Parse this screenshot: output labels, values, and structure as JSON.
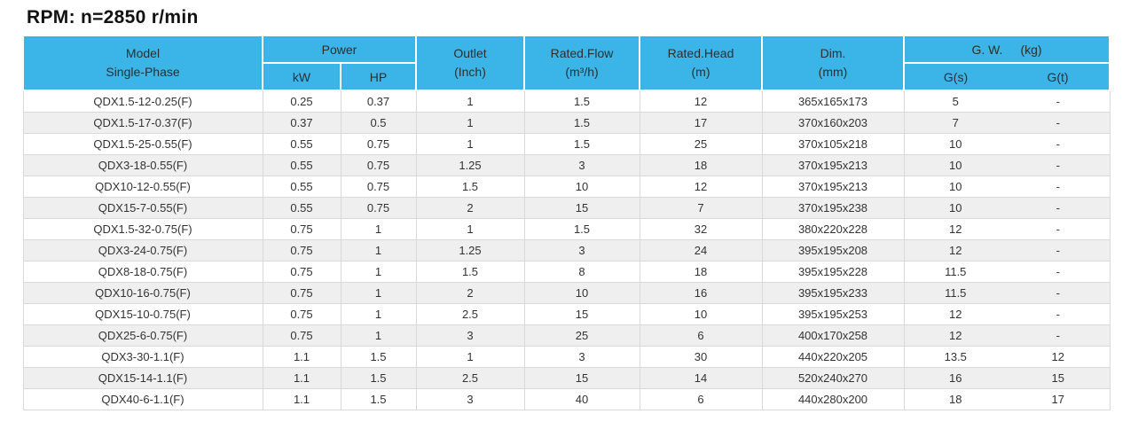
{
  "title": "RPM: n=2850 r/min",
  "colors": {
    "header_bg": "#3BB5E8",
    "row_alt_bg": "#EFEFEF",
    "grid_border": "#D9D9D9",
    "body_text": "#333333",
    "header_text": "#2E2E2E"
  },
  "table": {
    "header": {
      "model_line1": "Model",
      "model_line2": "Single-Phase",
      "power": "Power",
      "power_kw": "kW",
      "power_hp": "HP",
      "outlet_line1": "Outlet",
      "outlet_line2": "(Inch)",
      "flow_line1": "Rated.Flow",
      "flow_line2": "(m³/h)",
      "head_line1": "Rated.Head",
      "head_line2": "(m)",
      "dim_line1": "Dim.",
      "dim_line2": "(mm)",
      "gw_label": "G. W.",
      "gw_unit": "(kg)",
      "gw_gs": "G(s)",
      "gw_gt": "G(t)"
    },
    "rows": [
      [
        "QDX1.5-12-0.25(F)",
        "0.25",
        "0.37",
        "1",
        "1.5",
        "12",
        "365x165x173",
        "5",
        "-"
      ],
      [
        "QDX1.5-17-0.37(F)",
        "0.37",
        "0.5",
        "1",
        "1.5",
        "17",
        "370x160x203",
        "7",
        "-"
      ],
      [
        "QDX1.5-25-0.55(F)",
        "0.55",
        "0.75",
        "1",
        "1.5",
        "25",
        "370x105x218",
        "10",
        "-"
      ],
      [
        "QDX3-18-0.55(F)",
        "0.55",
        "0.75",
        "1.25",
        "3",
        "18",
        "370x195x213",
        "10",
        "-"
      ],
      [
        "QDX10-12-0.55(F)",
        "0.55",
        "0.75",
        "1.5",
        "10",
        "12",
        "370x195x213",
        "10",
        "-"
      ],
      [
        "QDX15-7-0.55(F)",
        "0.55",
        "0.75",
        "2",
        "15",
        "7",
        "370x195x238",
        "10",
        "-"
      ],
      [
        "QDX1.5-32-0.75(F)",
        "0.75",
        "1",
        "1",
        "1.5",
        "32",
        "380x220x228",
        "12",
        "-"
      ],
      [
        "QDX3-24-0.75(F)",
        "0.75",
        "1",
        "1.25",
        "3",
        "24",
        "395x195x208",
        "12",
        "-"
      ],
      [
        "QDX8-18-0.75(F)",
        "0.75",
        "1",
        "1.5",
        "8",
        "18",
        "395x195x228",
        "11.5",
        "-"
      ],
      [
        "QDX10-16-0.75(F)",
        "0.75",
        "1",
        "2",
        "10",
        "16",
        "395x195x233",
        "11.5",
        "-"
      ],
      [
        "QDX15-10-0.75(F)",
        "0.75",
        "1",
        "2.5",
        "15",
        "10",
        "395x195x253",
        "12",
        "-"
      ],
      [
        "QDX25-6-0.75(F)",
        "0.75",
        "1",
        "3",
        "25",
        "6",
        "400x170x258",
        "12",
        "-"
      ],
      [
        "QDX3-30-1.1(F)",
        "1.1",
        "1.5",
        "1",
        "3",
        "30",
        "440x220x205",
        "13.5",
        "12"
      ],
      [
        "QDX15-14-1.1(F)",
        "1.1",
        "1.5",
        "2.5",
        "15",
        "14",
        "520x240x270",
        "16",
        "15"
      ],
      [
        "QDX40-6-1.1(F)",
        "1.1",
        "1.5",
        "3",
        "40",
        "6",
        "440x280x200",
        "18",
        "17"
      ]
    ]
  }
}
